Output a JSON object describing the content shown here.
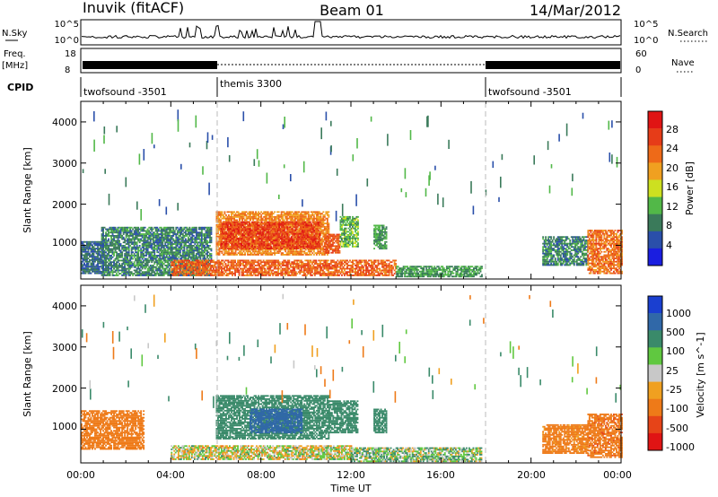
{
  "header": {
    "station": "Inuvik (fitACF)",
    "beam": "Beam 01",
    "date": "14/Mar/2012"
  },
  "top_panels": {
    "nsky_label": "N.Sky",
    "nsky_ticks": [
      "10^5",
      "10^0"
    ],
    "nsearch_label": "N.Search",
    "nsearch_ticks": [
      "10^5",
      "10^0"
    ],
    "freq_label_1": "Freq.",
    "freq_label_2": "[MHz]",
    "freq_ticks": [
      "18",
      "8"
    ],
    "nave_label": "Nave",
    "nave_ticks": [
      "60",
      "0"
    ],
    "cpid_label": "CPID",
    "cpid_segments": [
      {
        "label": "twofsound -3501",
        "start": 0,
        "end": 6
      },
      {
        "label": "themis 3300",
        "start": 6,
        "end": 18
      },
      {
        "label": "twofsound -3501",
        "start": 18,
        "end": 24
      }
    ]
  },
  "colors": {
    "power_scale": [
      "#1a1ee0",
      "#2a4faa",
      "#3a7a5a",
      "#52b848",
      "#cde020",
      "#f0a020",
      "#ee6a18",
      "#e63c18",
      "#e01414"
    ],
    "velocity_scale": [
      "#1a3fd0",
      "#3068a8",
      "#3a8a6a",
      "#60c840",
      "#c8c8c8",
      "#f0a020",
      "#ee7a18",
      "#e64418",
      "#e01414"
    ]
  },
  "chart_data": [
    {
      "type": "heatmap",
      "name": "power",
      "xlabel": "",
      "ylabel": "Slant Range [km]",
      "xlim": [
        0,
        24
      ],
      "ylim": [
        180,
        4500
      ],
      "yticks": [
        "1000",
        "2000",
        "3000",
        "4000"
      ],
      "colorbar_label": "Power [dB]",
      "colorbar_ticks": [
        "4",
        "8",
        "12",
        "16",
        "20",
        "24",
        "28"
      ],
      "colorbar_range": [
        0,
        32
      ],
      "regions": [
        {
          "t0": 0.9,
          "t1": 5.8,
          "r0": 250,
          "r1": 1450,
          "value": 10
        },
        {
          "t0": 6.0,
          "t1": 11.0,
          "r0": 750,
          "r1": 1800,
          "value": 24
        },
        {
          "t0": 6.2,
          "t1": 10.6,
          "r0": 900,
          "r1": 1550,
          "value": 30
        },
        {
          "t0": 10.8,
          "t1": 11.5,
          "r0": 800,
          "r1": 1250,
          "value": 28
        },
        {
          "t0": 11.5,
          "t1": 12.3,
          "r0": 950,
          "r1": 1700,
          "value": 14
        },
        {
          "t0": 4.0,
          "t1": 14.0,
          "r0": 250,
          "r1": 650,
          "value": 27
        },
        {
          "t0": 13.0,
          "t1": 13.6,
          "r0": 900,
          "r1": 1500,
          "value": 12
        },
        {
          "t0": 14.0,
          "t1": 17.8,
          "r0": 220,
          "r1": 500,
          "value": 12
        },
        {
          "t0": 20.5,
          "t1": 22.5,
          "r0": 500,
          "r1": 1200,
          "value": 10
        },
        {
          "t0": 22.5,
          "t1": 24.0,
          "r0": 300,
          "r1": 1350,
          "value": 26
        },
        {
          "t0": 0.0,
          "t1": 1.0,
          "r0": 300,
          "r1": 1100,
          "value": 8
        }
      ]
    },
    {
      "type": "heatmap",
      "name": "velocity",
      "xlabel": "Time UT",
      "ylabel": "Slant Range [km]",
      "xlim": [
        0,
        24
      ],
      "ylim": [
        180,
        4500
      ],
      "xticks": [
        "00:00",
        "04:00",
        "08:00",
        "12:00",
        "16:00",
        "20:00",
        "00:00"
      ],
      "yticks": [
        "1000",
        "2000",
        "3000",
        "4000"
      ],
      "colorbar_label": "Velocity [m s^-1]",
      "colorbar_ticks": [
        "1000",
        "500",
        "100",
        "25",
        "-25",
        "-100",
        "-500",
        "-1000"
      ],
      "regions": [
        {
          "t0": 0.0,
          "t1": 2.8,
          "r0": 500,
          "r1": 1450,
          "value": -300
        },
        {
          "t0": 6.0,
          "t1": 11.0,
          "r0": 750,
          "r1": 1800,
          "value": 300
        },
        {
          "t0": 7.5,
          "t1": 9.8,
          "r0": 900,
          "r1": 1500,
          "value": 800
        },
        {
          "t0": 11.0,
          "t1": 12.3,
          "r0": 900,
          "r1": 1700,
          "value": 250
        },
        {
          "t0": 4.0,
          "t1": 12.0,
          "r0": 250,
          "r1": 600,
          "value": 0
        },
        {
          "t0": 12.0,
          "t1": 17.8,
          "r0": 200,
          "r1": 550,
          "value": 60
        },
        {
          "t0": 13.0,
          "t1": 13.6,
          "r0": 900,
          "r1": 1500,
          "value": 300
        },
        {
          "t0": 20.5,
          "t1": 22.5,
          "r0": 400,
          "r1": 1100,
          "value": -200
        },
        {
          "t0": 22.5,
          "t1": 24.0,
          "r0": 300,
          "r1": 1350,
          "value": -400
        }
      ]
    }
  ]
}
